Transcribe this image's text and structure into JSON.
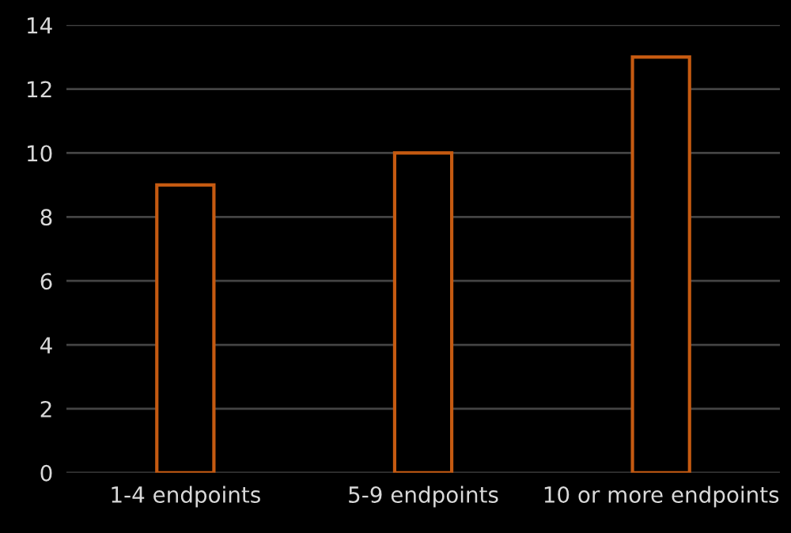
{
  "chart_data": {
    "type": "bar",
    "categories": [
      "1-4 endpoints",
      "5-9 endpoints",
      "10 or more endpoints"
    ],
    "values": [
      9,
      10,
      13
    ],
    "color": "#c55a11",
    "ylim": [
      0,
      14
    ],
    "yticks": [
      0,
      2,
      4,
      6,
      8,
      10,
      12,
      14
    ],
    "grid": "y"
  }
}
